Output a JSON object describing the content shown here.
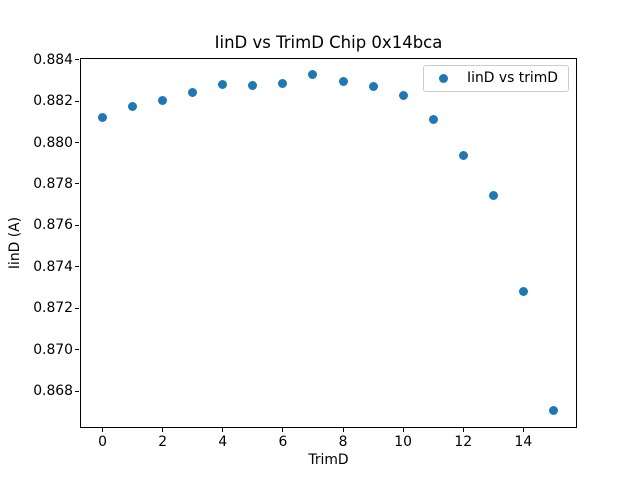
{
  "window": {
    "background": "#ffffff",
    "text_color": "#000000"
  },
  "chart_data": {
    "type": "scatter",
    "title": "IinD vs TrimD Chip 0x14bca",
    "xlabel": "TrimD",
    "ylabel": "IinD (A)",
    "grid": false,
    "xlim": [
      -0.75,
      15.75
    ],
    "ylim": [
      0.86627,
      0.88408
    ],
    "xticks": [
      {
        "value": 0,
        "label": "0"
      },
      {
        "value": 2,
        "label": "2"
      },
      {
        "value": 4,
        "label": "4"
      },
      {
        "value": 6,
        "label": "6"
      },
      {
        "value": 8,
        "label": "8"
      },
      {
        "value": 10,
        "label": "10"
      },
      {
        "value": 12,
        "label": "12"
      },
      {
        "value": 14,
        "label": "14"
      }
    ],
    "yticks": [
      {
        "value": 0.868,
        "label": "0.868"
      },
      {
        "value": 0.87,
        "label": "0.870"
      },
      {
        "value": 0.872,
        "label": "0.872"
      },
      {
        "value": 0.874,
        "label": "0.874"
      },
      {
        "value": 0.876,
        "label": "0.876"
      },
      {
        "value": 0.878,
        "label": "0.878"
      },
      {
        "value": 0.88,
        "label": "0.880"
      },
      {
        "value": 0.882,
        "label": "0.882"
      },
      {
        "value": 0.884,
        "label": "0.884"
      }
    ],
    "series": [
      {
        "name": "IinD vs trimD",
        "marker_color": "#1f77b4",
        "x": [
          0,
          1,
          2,
          3,
          4,
          5,
          6,
          7,
          8,
          9,
          10,
          11,
          12,
          13,
          14,
          15
        ],
        "y": [
          0.8812,
          0.88173,
          0.88205,
          0.8824,
          0.8828,
          0.88276,
          0.88287,
          0.88328,
          0.88296,
          0.88272,
          0.88225,
          0.88112,
          0.87937,
          0.87745,
          0.87282,
          0.86708
        ]
      }
    ],
    "legend": {
      "position": "upper right",
      "entries": [
        {
          "label": "IinD vs trimD",
          "marker_color": "#1f77b4"
        }
      ]
    }
  }
}
